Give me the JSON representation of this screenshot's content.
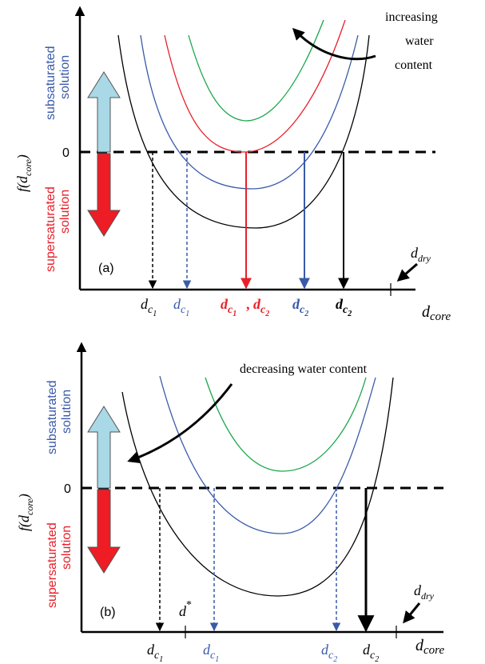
{
  "colors": {
    "black": "#000000",
    "blue": "#3a5aa8",
    "red": "#e8202a",
    "green": "#1aa64a",
    "light_blue_arrow": "#a9d8e6",
    "red_arrow": "#ee1c24"
  },
  "panel_a": {
    "label": "(a)",
    "y_axis_label": "f(d",
    "y_axis_sub": "core",
    "y_axis_close": ")",
    "zero_label": "0",
    "subsaturated_line1": "subsaturated",
    "subsaturated_line2": "solution",
    "supersaturated_line1": "supersaturated",
    "supersaturated_line2": "solution",
    "annotation_line1": "increasing",
    "annotation_line2": "water",
    "annotation_line3": "content",
    "x_axis_label": "d",
    "x_axis_sub": "core",
    "d_dry": "d",
    "d_dry_sub": "dry",
    "ticks": [
      {
        "main": "d",
        "sub": "c",
        "subsub": "1",
        "color": "black"
      },
      {
        "main": "d",
        "sub": "c",
        "subsub": "1",
        "color": "blue"
      },
      {
        "main": "d",
        "sub": "c",
        "subsub": "1",
        "color": "red",
        "bold": true
      },
      {
        "main": "d",
        "sub": "c",
        "subsub": "2",
        "color": "red",
        "bold": true
      },
      {
        "main": "d",
        "sub": "c",
        "subsub": "2",
        "color": "blue",
        "bold": true
      },
      {
        "main": "d",
        "sub": "c",
        "subsub": "2",
        "color": "black",
        "bold": true
      }
    ],
    "comma": ","
  },
  "panel_b": {
    "label": "(b)",
    "y_axis_label": "f(d",
    "y_axis_sub": "core",
    "y_axis_close": ")",
    "zero_label": "0",
    "subsaturated_line1": "subsaturated",
    "subsaturated_line2": "solution",
    "supersaturated_line1": "supersaturated",
    "supersaturated_line2": "solution",
    "annotation": "decreasing water content",
    "x_axis_label": "d",
    "x_axis_sub": "core",
    "d_dry": "d",
    "d_dry_sub": "dry",
    "d_star": "d",
    "d_star_sup": "*",
    "ticks": [
      {
        "main": "d",
        "sub": "c",
        "subsub": "1",
        "color": "black"
      },
      {
        "main": "d",
        "sub": "c",
        "subsub": "1",
        "color": "blue"
      },
      {
        "main": "d",
        "sub": "c",
        "subsub": "2",
        "color": "blue"
      },
      {
        "main": "d",
        "sub": "c",
        "subsub": "2",
        "color": "black"
      }
    ]
  }
}
